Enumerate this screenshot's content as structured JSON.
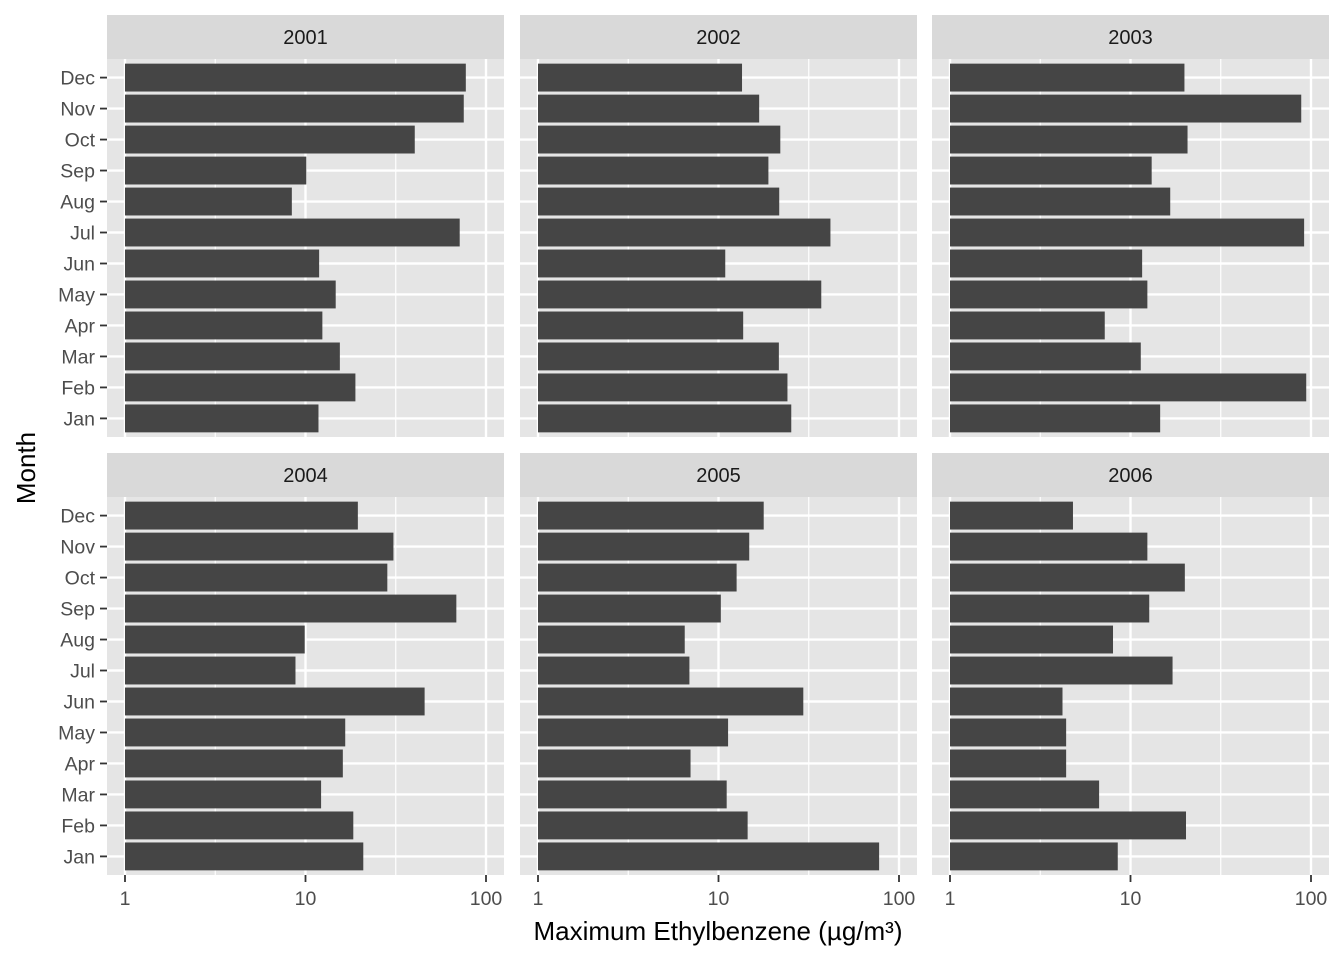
{
  "chart_data": {
    "type": "bar",
    "orientation": "horizontal",
    "xlabel": "Maximum Ethylbenzene (µg/m³)",
    "ylabel": "Month",
    "x_scale": "log10",
    "xlim": [
      1,
      100
    ],
    "x_ticks": [
      {
        "value": 1,
        "label": "1"
      },
      {
        "value": 10,
        "label": "10"
      },
      {
        "value": 100,
        "label": "100"
      }
    ],
    "categories": [
      "Jan",
      "Feb",
      "Mar",
      "Apr",
      "May",
      "Jun",
      "Jul",
      "Aug",
      "Sep",
      "Oct",
      "Nov",
      "Dec"
    ],
    "grid": true,
    "colors": {
      "bar": "#454545",
      "panel_background": "#e5e5e5",
      "strip_background": "#d9d9d9",
      "grid": "#ffffff"
    },
    "panels": [
      {
        "title": "2001",
        "values": [
          11.8,
          18.9,
          15.5,
          12.4,
          14.7,
          11.9,
          71.5,
          8.4,
          10.1,
          40.3,
          75.3,
          77.3
        ]
      },
      {
        "title": "2002",
        "values": [
          25.3,
          24.1,
          21.6,
          13.7,
          37.1,
          10.9,
          41.7,
          21.7,
          18.9,
          22.0,
          16.8,
          13.5
        ]
      },
      {
        "title": "2003",
        "values": [
          14.6,
          94.1,
          11.4,
          7.2,
          12.4,
          11.6,
          91.6,
          16.6,
          13.1,
          20.7,
          88.3,
          19.9
        ]
      },
      {
        "title": "2004",
        "values": [
          20.9,
          18.4,
          12.2,
          16.1,
          16.6,
          45.7,
          8.8,
          9.9,
          68.5,
          28.4,
          30.7,
          19.5
        ]
      },
      {
        "title": "2005",
        "values": [
          77.6,
          14.5,
          11.1,
          7.0,
          11.3,
          29.5,
          6.9,
          6.5,
          10.3,
          12.6,
          14.8,
          17.8
        ]
      },
      {
        "title": "2006",
        "values": [
          8.5,
          20.3,
          6.7,
          4.4,
          4.4,
          4.2,
          17.1,
          8.0,
          12.7,
          20.0,
          12.4,
          4.8
        ]
      }
    ]
  }
}
